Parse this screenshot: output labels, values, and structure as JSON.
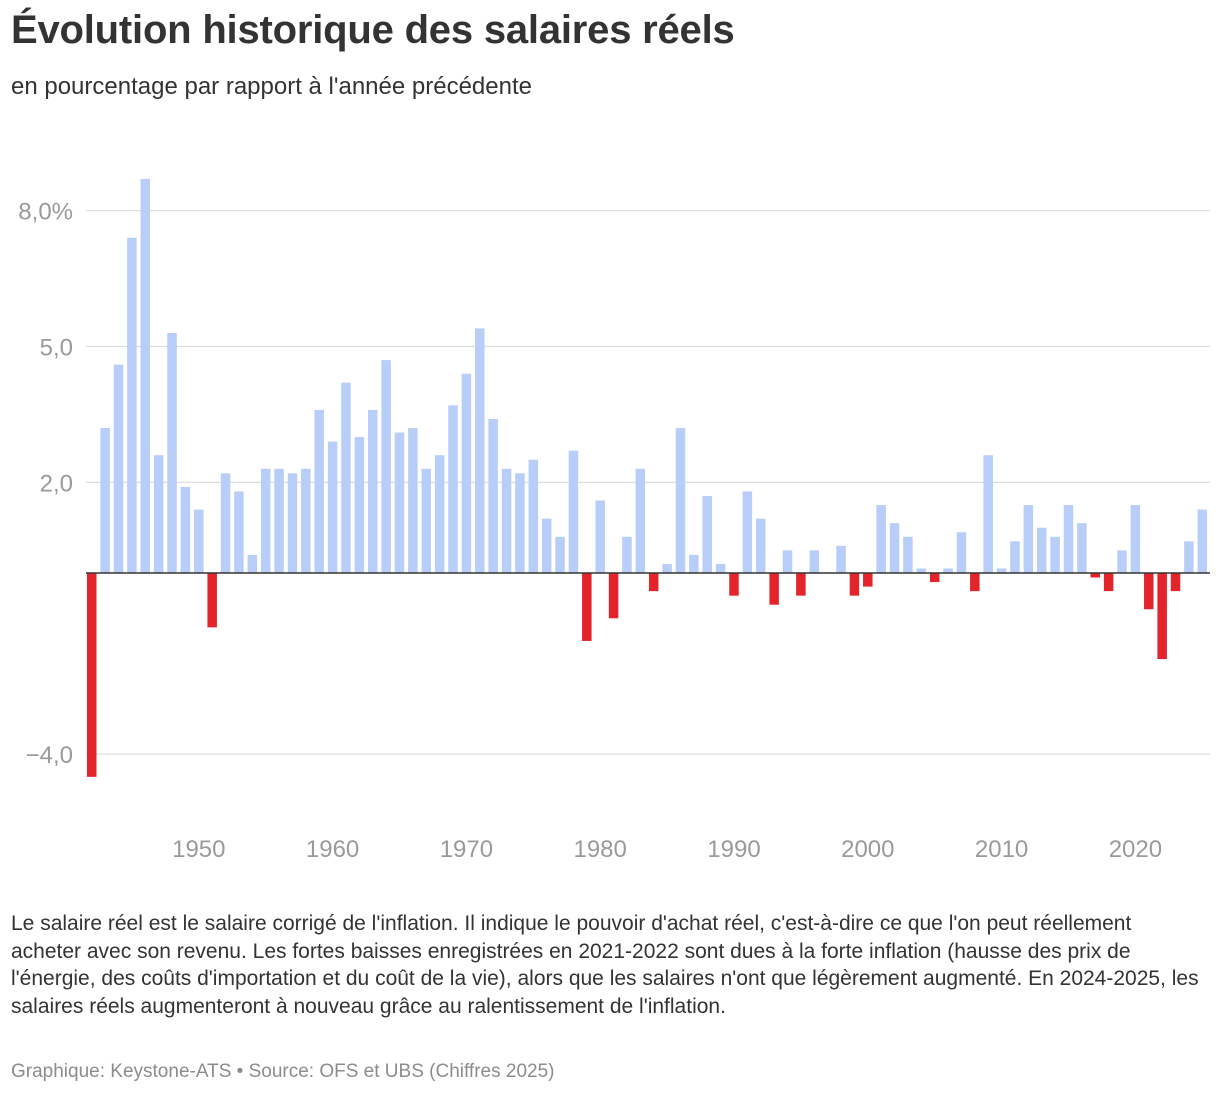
{
  "header": {
    "title": "Évolution historique des salaires réels",
    "subtitle": "en pourcentage par rapport à l'année précédente"
  },
  "footer": {
    "note": "Le salaire réel est le salaire corrigé de l'inflation. Il indique le pouvoir d'achat réel, c'est-à-dire ce que l'on peut réellement acheter avec son revenu. Les fortes baisses enregistrées en 2021-2022 sont dues à la forte inflation (hausse des prix de l'énergie, des coûts d'importation et du coût de la vie), alors que les salaires n'ont que légèrement augmenté. En 2024-2025, les salaires réels augmenteront à nouveau grâce au ralentissement de l'inflation.",
    "source": "Graphique: Keystone-ATS • Source: OFS et UBS (Chiffres 2025)"
  },
  "chart_data": {
    "type": "bar",
    "title": "Évolution historique des salaires réels",
    "subtitle": "en pourcentage par rapport à l'année précédente",
    "xlabel": "",
    "ylabel": "",
    "x": [
      1942,
      1943,
      1944,
      1945,
      1946,
      1947,
      1948,
      1949,
      1950,
      1951,
      1952,
      1953,
      1954,
      1955,
      1956,
      1957,
      1958,
      1959,
      1960,
      1961,
      1962,
      1963,
      1964,
      1965,
      1966,
      1967,
      1968,
      1969,
      1970,
      1971,
      1972,
      1973,
      1974,
      1975,
      1976,
      1977,
      1978,
      1979,
      1980,
      1981,
      1982,
      1983,
      1984,
      1985,
      1986,
      1987,
      1988,
      1989,
      1990,
      1991,
      1992,
      1993,
      1994,
      1995,
      1996,
      1997,
      1998,
      1999,
      2000,
      2001,
      2002,
      2003,
      2004,
      2005,
      2006,
      2007,
      2008,
      2009,
      2010,
      2011,
      2012,
      2013,
      2014,
      2015,
      2016,
      2017,
      2018,
      2019,
      2020,
      2021,
      2022,
      2023,
      2024,
      2025
    ],
    "values": [
      -4.5,
      3.2,
      4.6,
      7.4,
      8.7,
      2.6,
      5.3,
      1.9,
      1.4,
      -1.2,
      2.2,
      1.8,
      0.4,
      2.3,
      2.3,
      2.2,
      2.3,
      3.6,
      2.9,
      4.2,
      3.0,
      3.6,
      4.7,
      3.1,
      3.2,
      2.3,
      2.6,
      3.7,
      4.4,
      5.4,
      3.4,
      2.3,
      2.2,
      2.5,
      1.2,
      0.8,
      2.7,
      -1.5,
      1.6,
      -1.0,
      0.8,
      2.3,
      -0.4,
      0.2,
      3.2,
      0.4,
      1.7,
      0.2,
      -0.5,
      1.8,
      1.2,
      -0.7,
      0.5,
      -0.5,
      0.5,
      0.0,
      0.6,
      -0.5,
      -0.3,
      1.5,
      1.1,
      0.8,
      0.1,
      -0.2,
      0.1,
      0.9,
      -0.4,
      2.6,
      0.1,
      0.7,
      1.5,
      1.0,
      0.8,
      1.5,
      1.1,
      -0.1,
      -0.4,
      0.5,
      1.5,
      -0.8,
      -1.9,
      -0.4,
      0.7,
      1.4
    ],
    "ylim": [
      -5,
      9
    ],
    "yticks": [
      8,
      5,
      2,
      -4
    ],
    "ytick_labels": [
      "8,0%",
      "5,0",
      "2,0",
      "−4,0"
    ],
    "xticks": [
      1950,
      1960,
      1970,
      1980,
      1990,
      2000,
      2010,
      2020
    ],
    "xtick_labels": [
      "1950",
      "1960",
      "1970",
      "1980",
      "1990",
      "2000",
      "2010",
      "2020"
    ],
    "grid": true,
    "legend": "none",
    "colors": {
      "positive": "#b8cdf8",
      "negative": "#e3242b",
      "grid": "#dddddd",
      "zero_line": "#333333",
      "tick_text": "#9a9a9a"
    }
  }
}
